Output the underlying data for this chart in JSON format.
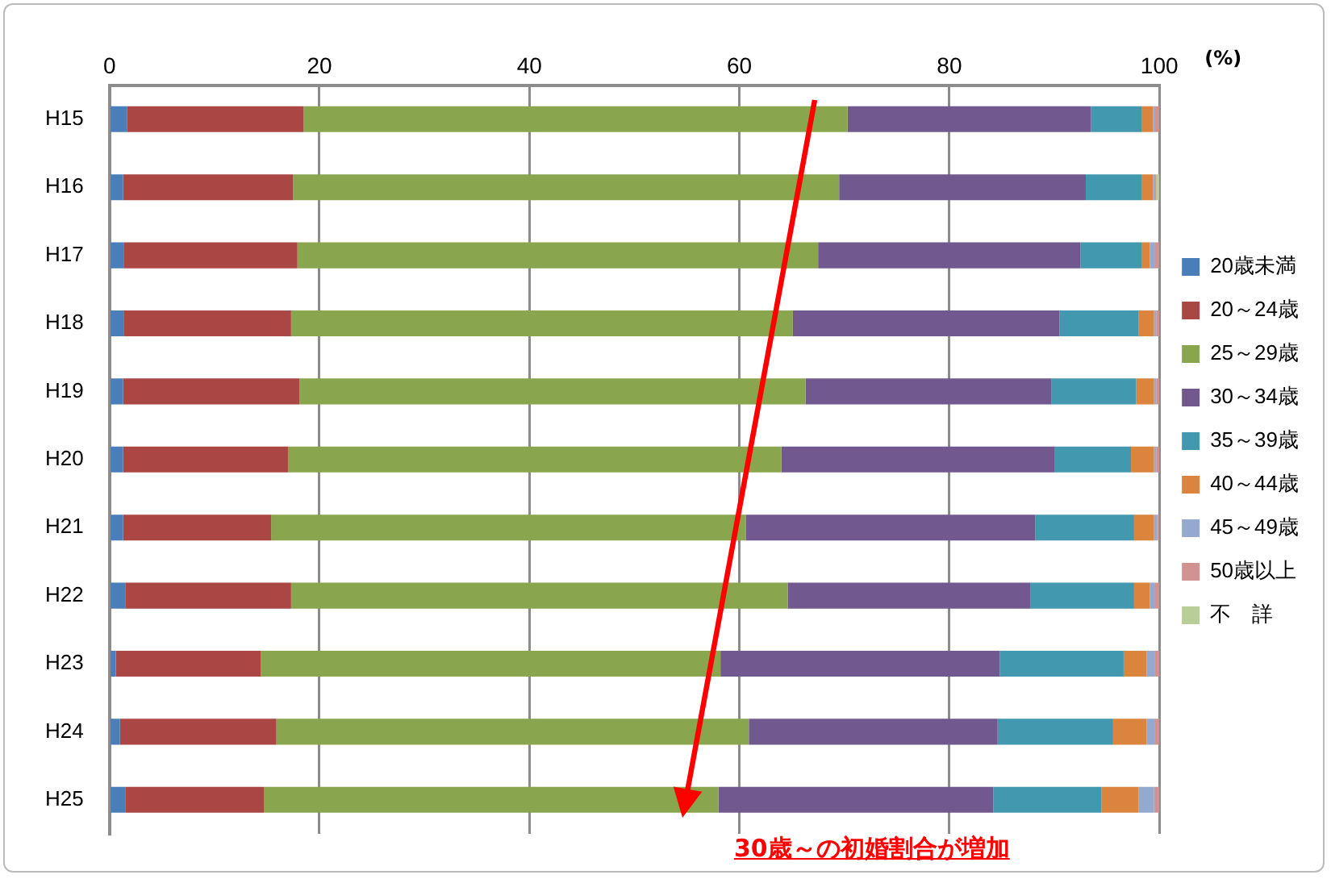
{
  "chart_data": {
    "type": "bar",
    "orientation": "horizontal",
    "stacked": true,
    "xlabel": "(%)",
    "categories": [
      "H15",
      "H16",
      "H17",
      "H18",
      "H19",
      "H20",
      "H21",
      "H22",
      "H23",
      "H24",
      "H25"
    ],
    "series": [
      {
        "name": "20歳未満",
        "color": "#4a7ebb",
        "values": [
          1.7,
          1.3,
          1.4,
          1.4,
          1.3,
          1.3,
          1.3,
          1.5,
          0.6,
          1.0,
          1.5
        ]
      },
      {
        "name": "20～24歳",
        "color": "#aa4643",
        "values": [
          16.8,
          16.2,
          16.5,
          15.9,
          16.8,
          15.7,
          14.1,
          15.8,
          13.8,
          14.9,
          13.2
        ]
      },
      {
        "name": "25～29歳",
        "color": "#89a54e",
        "values": [
          51.8,
          52.0,
          49.6,
          47.8,
          48.2,
          47.0,
          45.2,
          47.3,
          43.8,
          45.0,
          43.3
        ]
      },
      {
        "name": "30～34歳",
        "color": "#71588f",
        "values": [
          23.2,
          23.5,
          25.0,
          25.4,
          23.4,
          26.0,
          27.6,
          23.1,
          26.6,
          23.7,
          26.2
        ]
      },
      {
        "name": "35～39歳",
        "color": "#4198af",
        "values": [
          4.8,
          5.3,
          5.8,
          7.5,
          8.1,
          7.3,
          9.4,
          9.9,
          11.8,
          11.0,
          10.3
        ]
      },
      {
        "name": "40～44歳",
        "color": "#db843d",
        "values": [
          1.1,
          1.1,
          0.8,
          1.5,
          1.7,
          2.2,
          1.9,
          1.5,
          2.2,
          3.2,
          3.5
        ]
      },
      {
        "name": "45～49歳",
        "color": "#93a9cf",
        "values": [
          0.2,
          0.2,
          0.5,
          0.2,
          0.2,
          0.2,
          0.3,
          0.5,
          0.8,
          0.8,
          1.5
        ]
      },
      {
        "name": "50歳以上",
        "color": "#d19392",
        "values": [
          0.4,
          0.1,
          0.4,
          0.3,
          0.3,
          0.3,
          0.2,
          0.4,
          0.4,
          0.4,
          0.5
        ]
      },
      {
        "name": "不　詳",
        "color": "#b9cd96",
        "values": [
          0,
          0.3,
          0,
          0,
          0,
          0,
          0,
          0,
          0,
          0,
          0
        ]
      }
    ],
    "xlim": [
      0,
      100
    ],
    "xticks": [
      0,
      20,
      40,
      60,
      80,
      100
    ],
    "grid": "x",
    "legend": "right",
    "annotations": [
      "30歳～の初婚割合が増加"
    ]
  }
}
